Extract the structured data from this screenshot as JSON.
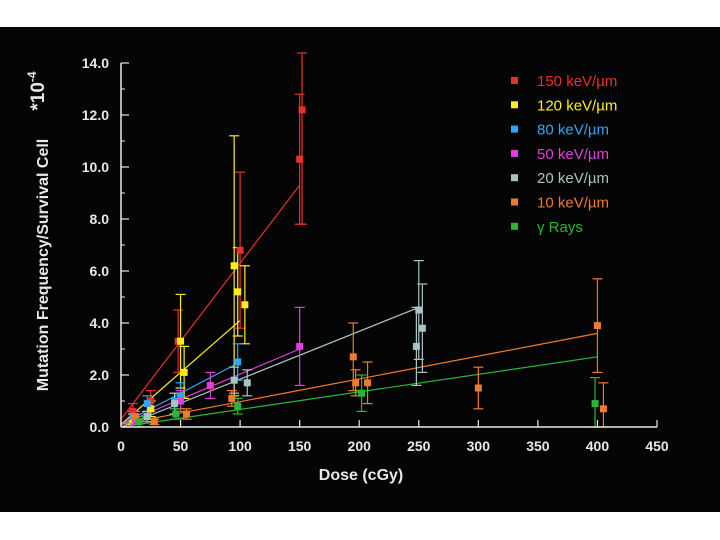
{
  "chart_data": {
    "type": "scatter",
    "title": "",
    "xlabel": "Dose (cGy)",
    "ylabel": "Mutation Frequency/Survival Cell",
    "y_multiplier": "*10",
    "y_multiplier_exp": "-4",
    "xlim": [
      0,
      450
    ],
    "ylim": [
      0,
      14
    ],
    "x_ticks": [
      0,
      50,
      100,
      150,
      200,
      250,
      300,
      350,
      400,
      450
    ],
    "x_tick_labels": [
      "0",
      "50",
      "100",
      "150",
      "200",
      "250",
      "300",
      "350",
      "400",
      "450"
    ],
    "y_ticks": [
      0,
      2,
      4,
      6,
      8,
      10,
      12,
      14
    ],
    "y_tick_labels": [
      "0.0",
      "2.0",
      "4.0",
      "6.0",
      "8.0",
      "10.0",
      "12.0",
      "14.0"
    ],
    "grid": false,
    "legend_position": "top-right",
    "series": [
      {
        "name": "150 keV/µm",
        "color": "#e8302a",
        "points": [
          [
            10,
            0.6,
            0.3
          ],
          [
            25,
            1.0,
            0.4
          ],
          [
            48,
            3.3,
            1.2
          ],
          [
            100,
            6.8,
            3.0
          ],
          [
            150,
            10.3,
            2.5
          ],
          [
            152,
            12.2,
            4.4
          ]
        ],
        "fit": [
          [
            0,
            0.3
          ],
          [
            150,
            9.3
          ]
        ]
      },
      {
        "name": "120 keV/µm",
        "color": "#ffee1a",
        "points": [
          [
            10,
            0.3,
            0.2
          ],
          [
            25,
            0.7,
            0.3
          ],
          [
            50,
            3.3,
            1.8
          ],
          [
            53,
            2.1,
            1.0
          ],
          [
            95,
            6.2,
            5.0
          ],
          [
            98,
            5.2,
            1.7
          ],
          [
            104,
            4.7,
            1.5
          ]
        ],
        "fit": [
          [
            0,
            0.1
          ],
          [
            100,
            4.1
          ]
        ]
      },
      {
        "name": "80 keV/µm",
        "color": "#2fa8ef",
        "points": [
          [
            10,
            0.4,
            0.2
          ],
          [
            22,
            0.9,
            0.3
          ],
          [
            45,
            1.0,
            0.3
          ],
          [
            50,
            1.2,
            0.5
          ],
          [
            98,
            2.5,
            0.7
          ]
        ],
        "fit": [
          [
            0,
            0.1
          ],
          [
            100,
            2.5
          ]
        ]
      },
      {
        "name": "50 keV/µm",
        "color": "#e23fd8",
        "points": [
          [
            12,
            0.3,
            0.2
          ],
          [
            50,
            1.0,
            0.4
          ],
          [
            75,
            1.6,
            0.5
          ],
          [
            150,
            3.1,
            1.5
          ]
        ],
        "fit": [
          [
            0,
            0.1
          ],
          [
            150,
            3.0
          ]
        ]
      },
      {
        "name": "20 keV/µm",
        "color": "#a9c4c4",
        "points": [
          [
            22,
            0.4,
            0.2
          ],
          [
            45,
            0.9,
            0.4
          ],
          [
            95,
            1.8,
            0.5
          ],
          [
            106,
            1.7,
            0.5
          ],
          [
            248,
            3.1,
            1.5
          ],
          [
            250,
            4.5,
            1.9
          ],
          [
            253,
            3.8,
            1.7
          ]
        ],
        "fit": [
          [
            0,
            0.0
          ],
          [
            250,
            4.6
          ]
        ]
      },
      {
        "name": "10 keV/µm",
        "color": "#f07a28",
        "points": [
          [
            12,
            0.4,
            0.2
          ],
          [
            28,
            0.2,
            0.1
          ],
          [
            55,
            0.5,
            0.2
          ],
          [
            93,
            1.1,
            0.3
          ],
          [
            195,
            2.7,
            1.3
          ],
          [
            197,
            1.7,
            0.5
          ],
          [
            207,
            1.7,
            0.8
          ],
          [
            300,
            1.5,
            0.8
          ],
          [
            400,
            3.9,
            1.8
          ],
          [
            405,
            0.7,
            1.0
          ]
        ],
        "fit": [
          [
            0,
            0.1
          ],
          [
            400,
            3.6
          ]
        ]
      },
      {
        "name": "γ Rays",
        "color": "#27b836",
        "points": [
          [
            15,
            0.2,
            0.2
          ],
          [
            46,
            0.5,
            0.2
          ],
          [
            98,
            0.8,
            0.3
          ],
          [
            202,
            1.3,
            0.7
          ],
          [
            398,
            0.9,
            1.0
          ]
        ],
        "fit": [
          [
            0,
            0.0
          ],
          [
            400,
            2.7
          ]
        ]
      }
    ]
  }
}
